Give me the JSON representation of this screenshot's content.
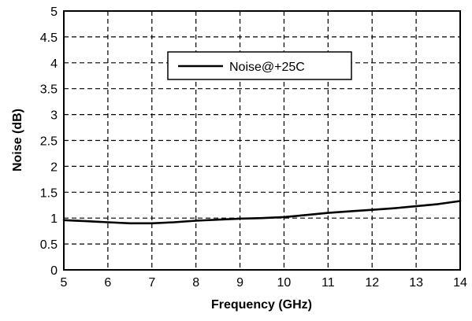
{
  "chart_data": {
    "type": "line",
    "title": "",
    "xlabel": "Frequency (GHz)",
    "ylabel": "Noise (dB)",
    "xlim": [
      5,
      14
    ],
    "ylim": [
      0,
      5
    ],
    "xticks": [
      "5",
      "6",
      "7",
      "8",
      "9",
      "10",
      "11",
      "12",
      "13",
      "14"
    ],
    "yticks": [
      "0",
      "0.5",
      "1",
      "1.5",
      "2",
      "2.5",
      "3",
      "3.5",
      "4",
      "4.5",
      "5"
    ],
    "grid": true,
    "legend": "top-center",
    "series": [
      {
        "name": "Noise@+25C",
        "color": "#000000",
        "x": [
          5,
          5.5,
          6,
          6.5,
          7,
          7.5,
          8,
          8.5,
          9,
          9.5,
          10,
          10.5,
          11,
          11.5,
          12,
          12.5,
          13,
          13.5,
          14
        ],
        "y": [
          0.96,
          0.94,
          0.92,
          0.9,
          0.9,
          0.92,
          0.95,
          0.97,
          0.99,
          1.0,
          1.02,
          1.06,
          1.1,
          1.13,
          1.16,
          1.19,
          1.23,
          1.27,
          1.33
        ]
      }
    ]
  }
}
